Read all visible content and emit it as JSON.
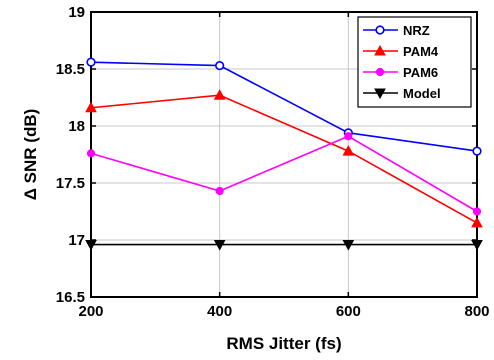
{
  "chart_data": {
    "type": "line",
    "title": "",
    "xlabel": "RMS Jitter (fs)",
    "ylabel": "Δ SNR (dB)",
    "xlim": [
      200,
      800
    ],
    "ylim": [
      16.5,
      19
    ],
    "x": [
      200,
      400,
      600,
      800
    ],
    "xticks": [
      "200",
      "400",
      "600",
      "800"
    ],
    "yticks": [
      "16.5",
      "17",
      "17.5",
      "18",
      "18.5",
      "19"
    ],
    "grid": true,
    "legend_position": "top-right",
    "series": [
      {
        "name": "NRZ",
        "color": "#0000ff",
        "marker": "circle-open",
        "values": [
          18.56,
          18.53,
          17.94,
          17.78
        ]
      },
      {
        "name": "PAM4",
        "color": "#ff0000",
        "marker": "triangle-up-filled",
        "values": [
          18.16,
          18.27,
          17.78,
          17.15
        ]
      },
      {
        "name": "PAM6",
        "color": "#ff00ff",
        "marker": "circle-filled",
        "values": [
          17.76,
          17.43,
          17.91,
          17.25
        ]
      },
      {
        "name": "Model",
        "color": "#000000",
        "marker": "triangle-down-filled",
        "values": [
          16.96,
          16.96,
          16.96,
          16.96
        ]
      }
    ]
  }
}
